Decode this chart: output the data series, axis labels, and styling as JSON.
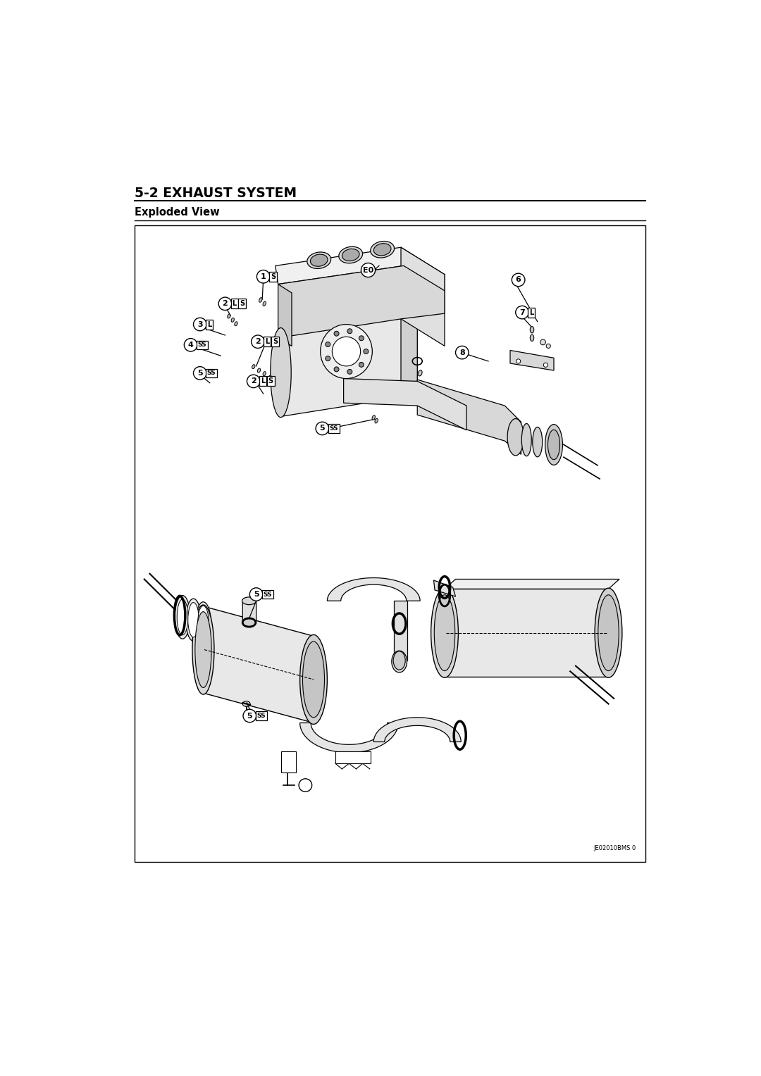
{
  "title": "5-2 EXHAUST SYSTEM",
  "subtitle": "Exploded View",
  "bg_color": "#ffffff",
  "text_color": "#000000",
  "watermark": "JE02010BMS 0",
  "page_width": 10.8,
  "page_height": 15.28
}
